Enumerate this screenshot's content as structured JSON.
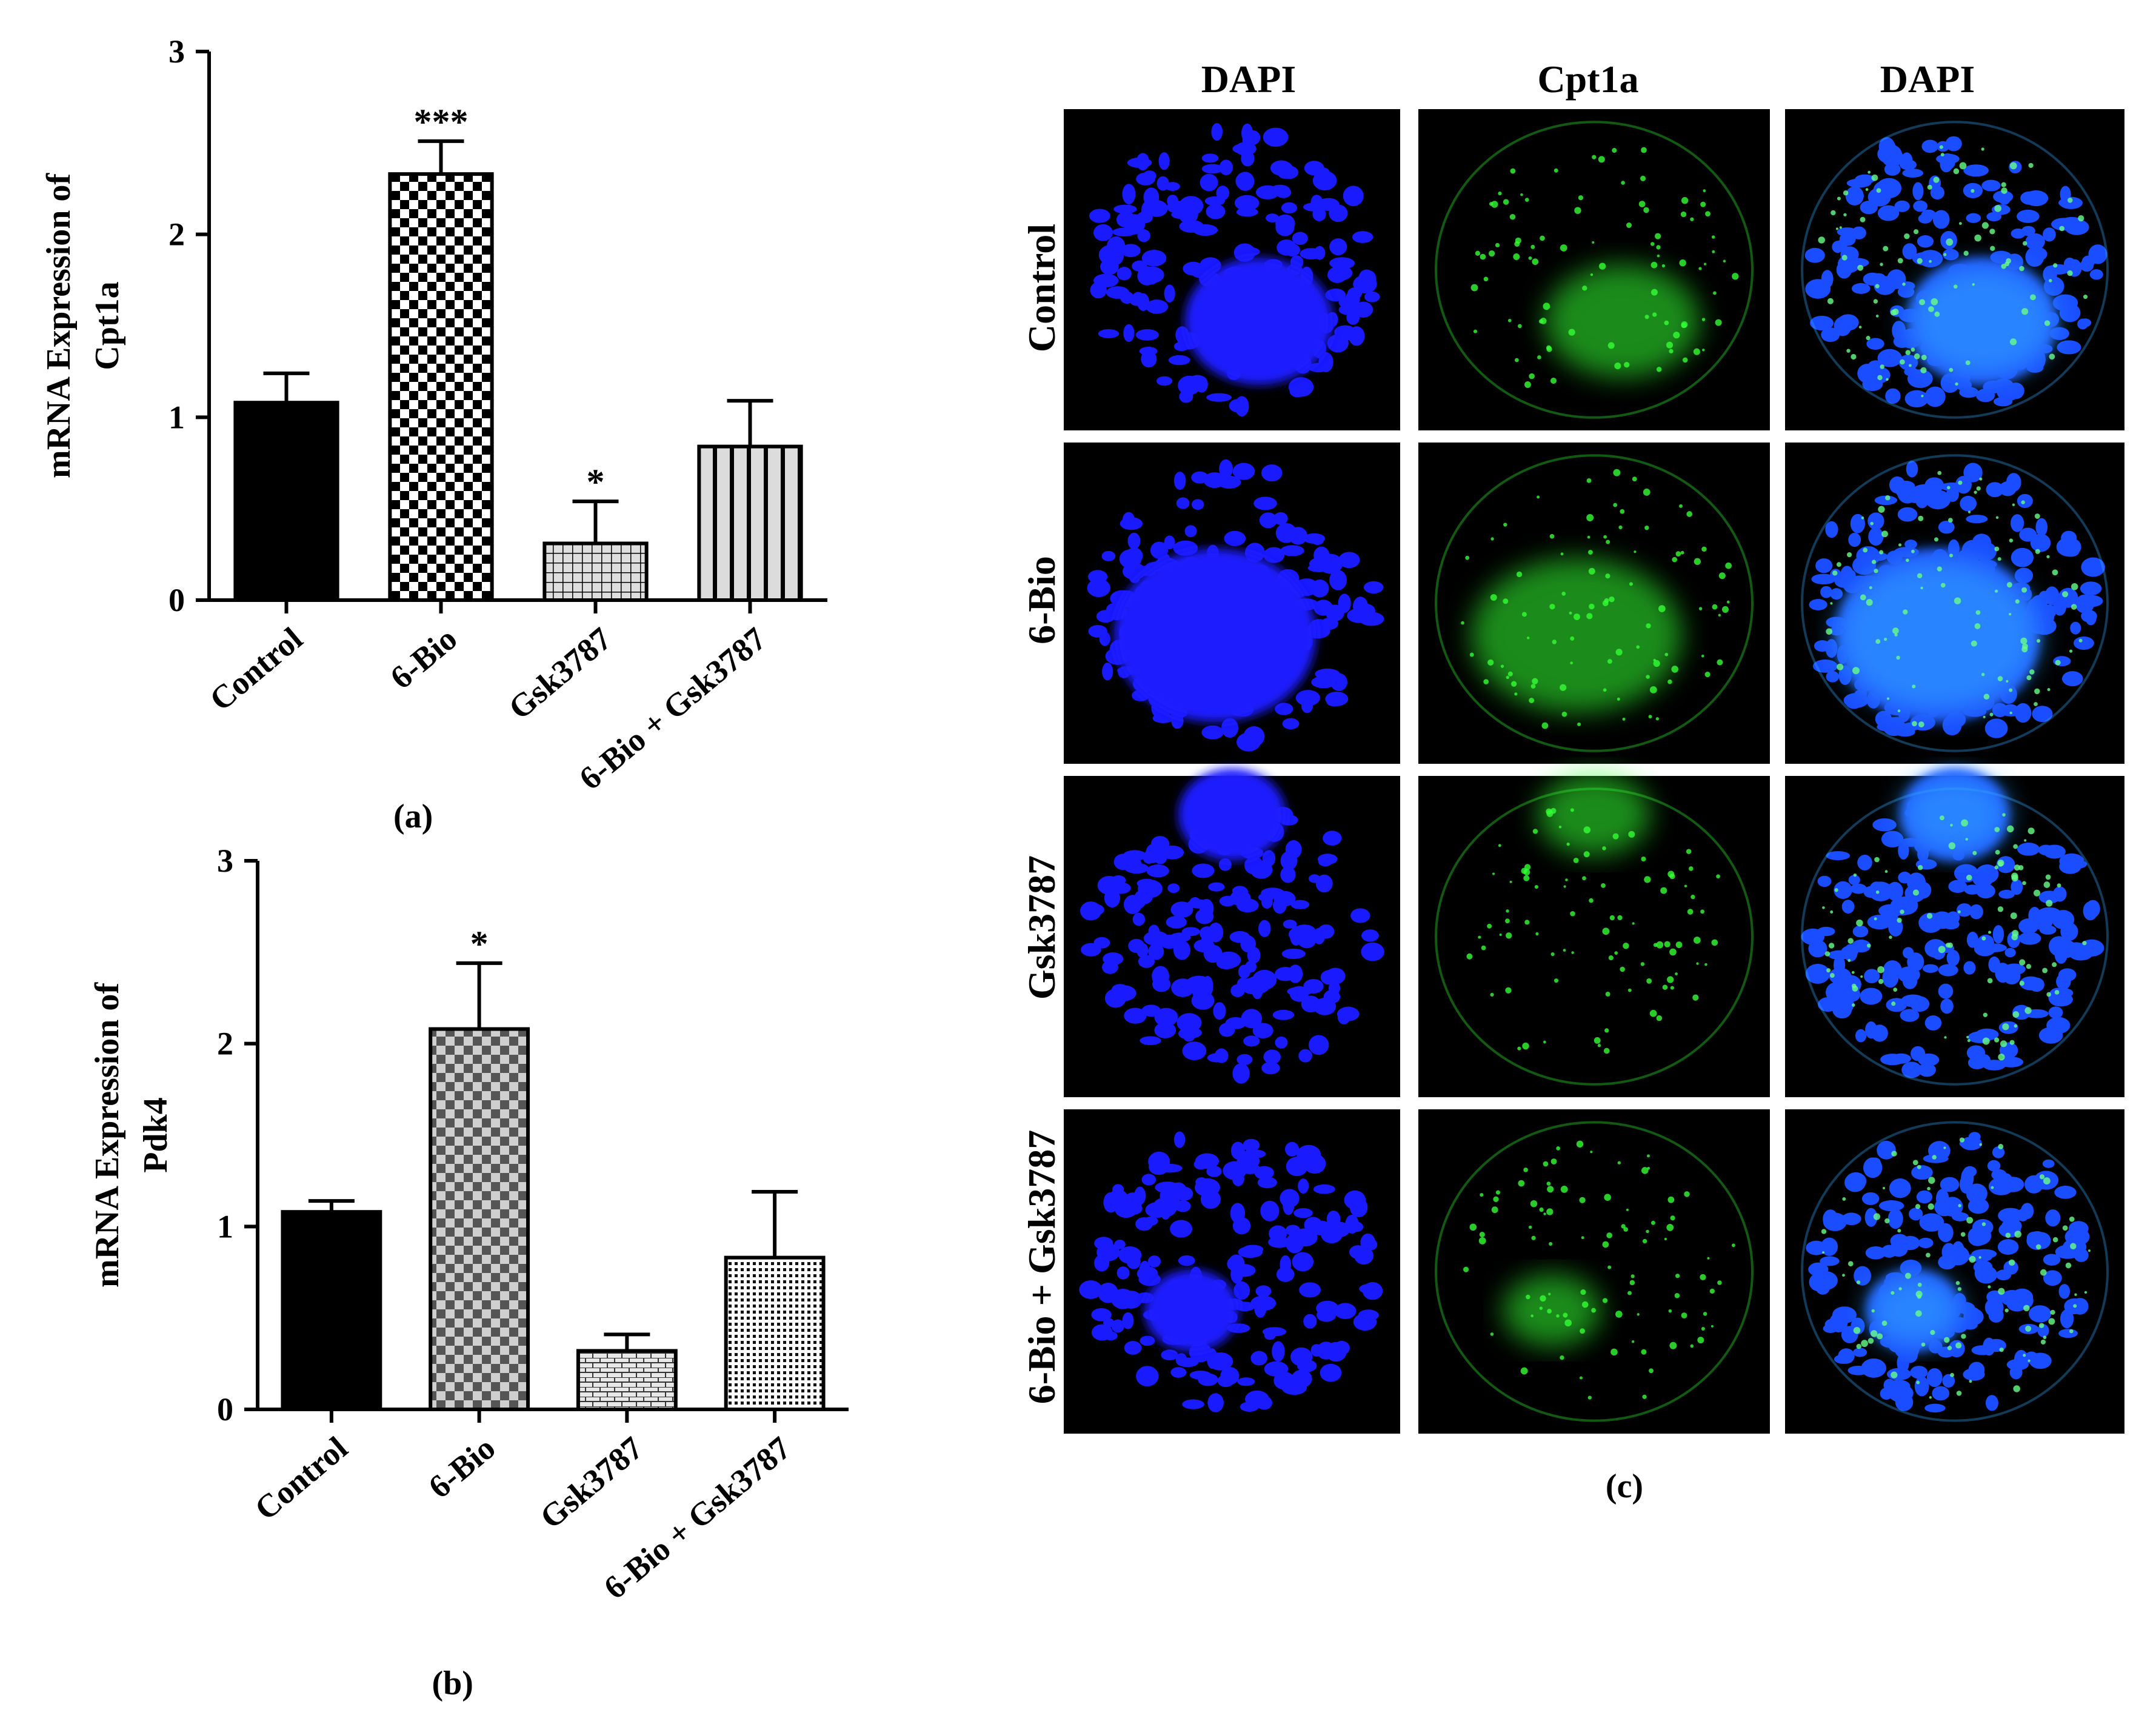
{
  "chart_data": [
    {
      "type": "bar",
      "panel_label": "(a)",
      "ylabel": "mRNA Expression of Cpt1a",
      "ylim": [
        0,
        3
      ],
      "yticks": [
        "0",
        "1",
        "2",
        "3"
      ],
      "categories": [
        "Control",
        "6-Bio",
        "Gsk3787",
        "6-Bio + Gsk3787"
      ],
      "values": [
        1.08,
        2.33,
        0.31,
        0.84
      ],
      "errors": [
        0.16,
        0.18,
        0.23,
        0.25
      ],
      "annotations": [
        "",
        "***",
        "*",
        ""
      ],
      "fills": [
        "solid-black",
        "checker",
        "grid",
        "vertical-stripes"
      ]
    },
    {
      "type": "bar",
      "panel_label": "(b)",
      "ylabel": "mRNA Expression of Pdk4",
      "ylim": [
        0,
        3
      ],
      "yticks": [
        "0",
        "1",
        "2",
        "3"
      ],
      "categories": [
        "Control",
        "6-Bio",
        "Gsk3787",
        "6-Bio + Gsk3787"
      ],
      "values": [
        1.08,
        2.08,
        0.32,
        0.83
      ],
      "errors": [
        0.06,
        0.36,
        0.09,
        0.36
      ],
      "annotations": [
        "",
        "*",
        "",
        ""
      ],
      "fills": [
        "solid-black",
        "gray-checker",
        "brick",
        "fine-dots"
      ]
    }
  ],
  "figure_c": {
    "panel_label": "(c)",
    "column_headers": [
      "DAPI",
      "Cpt1a",
      "DAPI"
    ],
    "row_labels": [
      "Control",
      "6-Bio",
      "Gsk3787",
      "6-Bio + Gsk3787"
    ],
    "colors": {
      "dapi": "#1a1aff",
      "cpt1a": "#33ff33",
      "merge": "#33aaff",
      "background": "#000000"
    }
  }
}
